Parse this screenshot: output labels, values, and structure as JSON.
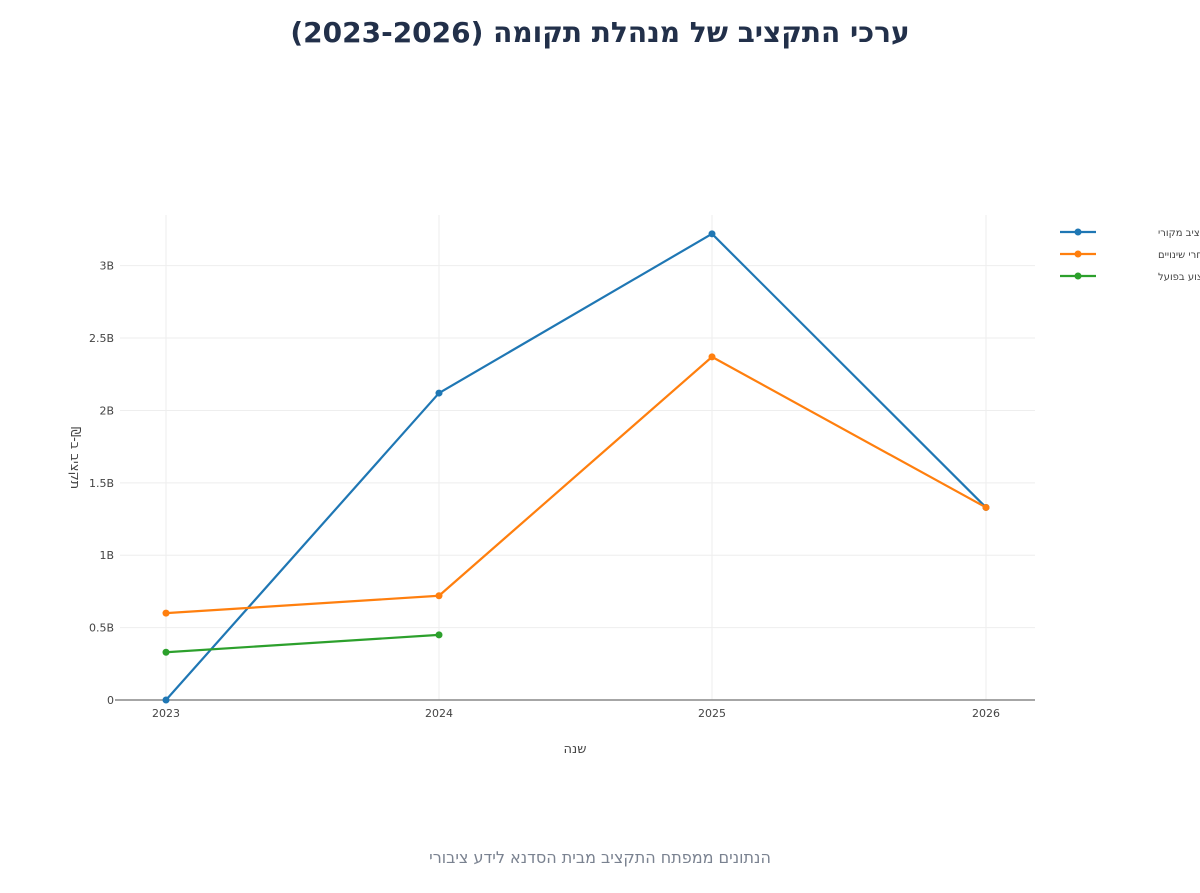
{
  "header": {
    "title": "ערכי התקציב של מנהלת תקומה (2023-2026)"
  },
  "footer": {
    "note": "הנתונים ממפתח התקציב מבית הסדנא לידע ציבורי"
  },
  "chart_data": {
    "type": "line",
    "title": "ערכי התקציב של מנהלת תקומה (2023-2026)",
    "xlabel": "שנה",
    "ylabel": "תקציב ב-₪",
    "x": [
      2023,
      2024,
      2025,
      2026
    ],
    "x_tick_labels": [
      "2023",
      "2024",
      "2025",
      "2026"
    ],
    "ylim": [
      0,
      3.35
    ],
    "y_unit": "billions ₪",
    "y_ticks": [
      0,
      0.5,
      1,
      1.5,
      2,
      2.5,
      3
    ],
    "y_tick_labels": [
      "0",
      "0.5B",
      "1B",
      "1.5B",
      "2B",
      "2.5B",
      "3B"
    ],
    "grid": true,
    "legend_position": "top-right",
    "series": [
      {
        "name": "תקציב מקורי",
        "color": "#1f77b4",
        "values": [
          0,
          2.12,
          3.22,
          1.33
        ]
      },
      {
        "name": "אחרי שינויים",
        "color": "#ff7f0e",
        "values": [
          0.6,
          0.72,
          2.37,
          1.33
        ]
      },
      {
        "name": "ביצוע בפועל",
        "color": "#2ca02c",
        "values": [
          0.33,
          0.45,
          null,
          null
        ]
      }
    ]
  }
}
